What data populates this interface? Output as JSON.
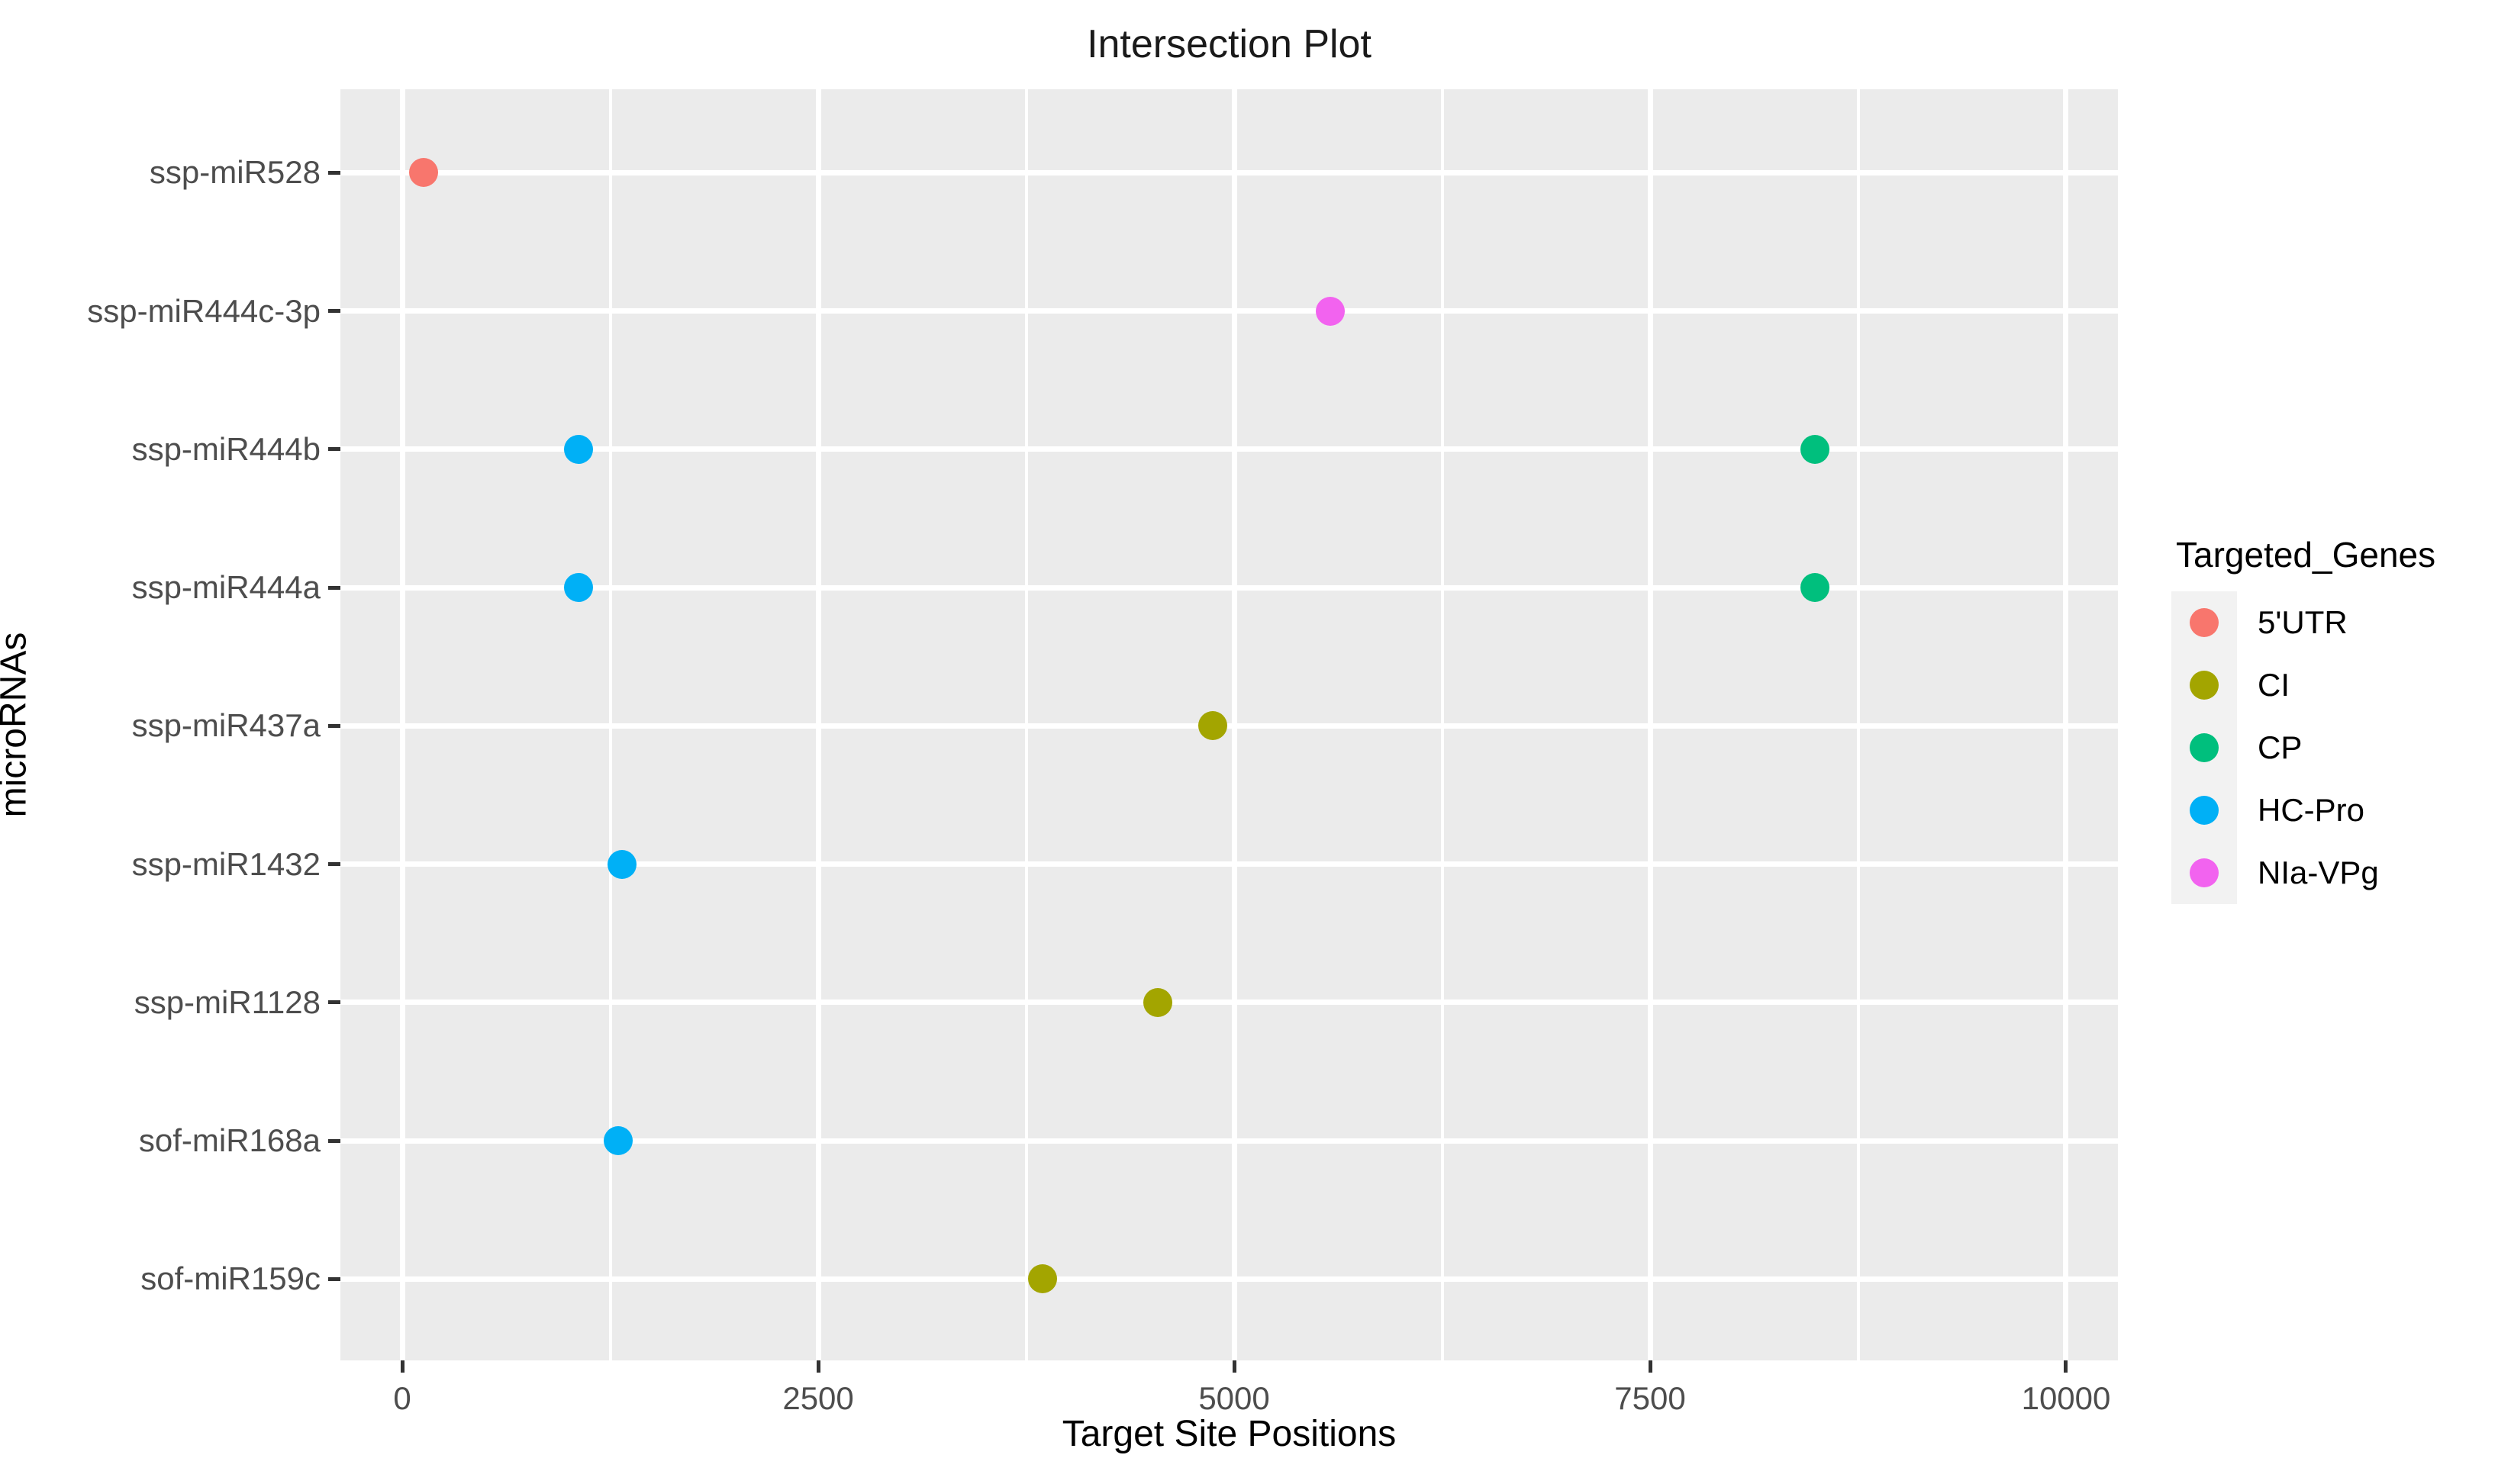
{
  "chart_data": {
    "type": "scatter",
    "title": "Intersection Plot",
    "xlabel": "Target Site Positions",
    "ylabel": "microRNAs",
    "x_ticks": [
      0,
      2500,
      5000,
      7500,
      10000
    ],
    "x_minor_gridlines": [
      1250,
      3750,
      6250,
      8750
    ],
    "xlim": [
      -372,
      10312
    ],
    "categories_top_to_bottom": [
      "ssp-miR528",
      "ssp-miR444c-3p",
      "ssp-miR444b",
      "ssp-miR444a",
      "ssp-miR437a",
      "ssp-miR1432",
      "ssp-miR1128",
      "sof-miR168a",
      "sof-miR159c"
    ],
    "grid": true,
    "legend_position": "right",
    "legend": {
      "title": "Targeted_Genes",
      "entries": [
        {
          "label": "5'UTR",
          "color": "#F8766D"
        },
        {
          "label": "CI",
          "color": "#A3A500"
        },
        {
          "label": "CP",
          "color": "#00BF7D"
        },
        {
          "label": "HC-Pro",
          "color": "#00B0F6"
        },
        {
          "label": "NIa-VPg",
          "color": "#F263EF"
        }
      ]
    },
    "points": [
      {
        "mirna": "ssp-miR528",
        "gene": "5'UTR",
        "x": 130
      },
      {
        "mirna": "ssp-miR444c-3p",
        "gene": "NIa-VPg",
        "x": 5580
      },
      {
        "mirna": "ssp-miR444b",
        "gene": "HC-Pro",
        "x": 1060
      },
      {
        "mirna": "ssp-miR444b",
        "gene": "CP",
        "x": 8490
      },
      {
        "mirna": "ssp-miR444a",
        "gene": "HC-Pro",
        "x": 1060
      },
      {
        "mirna": "ssp-miR444a",
        "gene": "CP",
        "x": 8490
      },
      {
        "mirna": "ssp-miR437a",
        "gene": "CI",
        "x": 4870
      },
      {
        "mirna": "ssp-miR1432",
        "gene": "HC-Pro",
        "x": 1320
      },
      {
        "mirna": "ssp-miR1128",
        "gene": "CI",
        "x": 4540
      },
      {
        "mirna": "sof-miR168a",
        "gene": "HC-Pro",
        "x": 1300
      },
      {
        "mirna": "sof-miR159c",
        "gene": "CI",
        "x": 3850
      }
    ],
    "colors": {
      "panel_background": "#EBEBEB",
      "gridline": "#FFFFFF",
      "tick_label": "#4D4D4D",
      "tick_mark": "#333333",
      "legend_key_background": "#F2F2F2",
      "text": "#000000"
    }
  }
}
